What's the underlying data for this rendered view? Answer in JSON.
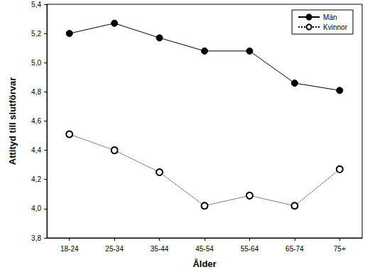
{
  "chart_data": {
    "type": "line",
    "x_label": "Ålder",
    "y_label": "Attityd till slutförvar",
    "categories": [
      "18-24",
      "25-34",
      "35-44",
      "45-54",
      "55-64",
      "65-74",
      "75+"
    ],
    "series": [
      {
        "name": "Män",
        "color": "#000000",
        "marker": "circle",
        "line_style": "solid",
        "values": [
          5.2,
          5.27,
          5.17,
          5.08,
          5.08,
          4.86,
          4.81
        ]
      },
      {
        "name": "Kvinnor",
        "color": "#000000",
        "marker": "open_circle",
        "line_style": "dotted",
        "values": [
          4.51,
          4.4,
          4.25,
          4.02,
          4.09,
          4.02,
          4.27
        ]
      }
    ],
    "ylim": [
      3.8,
      5.4
    ],
    "yticks": [
      {
        "value": 3.8,
        "label": "3,8"
      },
      {
        "value": 4.0,
        "label": "4,0"
      },
      {
        "value": 4.2,
        "label": "4,2"
      },
      {
        "value": 4.4,
        "label": "4,4"
      },
      {
        "value": 4.6,
        "label": "4,6"
      },
      {
        "value": 4.8,
        "label": "4,8"
      },
      {
        "value": 5.0,
        "label": "5,0"
      },
      {
        "value": 5.2,
        "label": "5,2"
      },
      {
        "value": 5.4,
        "label": "5,4"
      }
    ],
    "grid": false,
    "legend": "upper right"
  }
}
